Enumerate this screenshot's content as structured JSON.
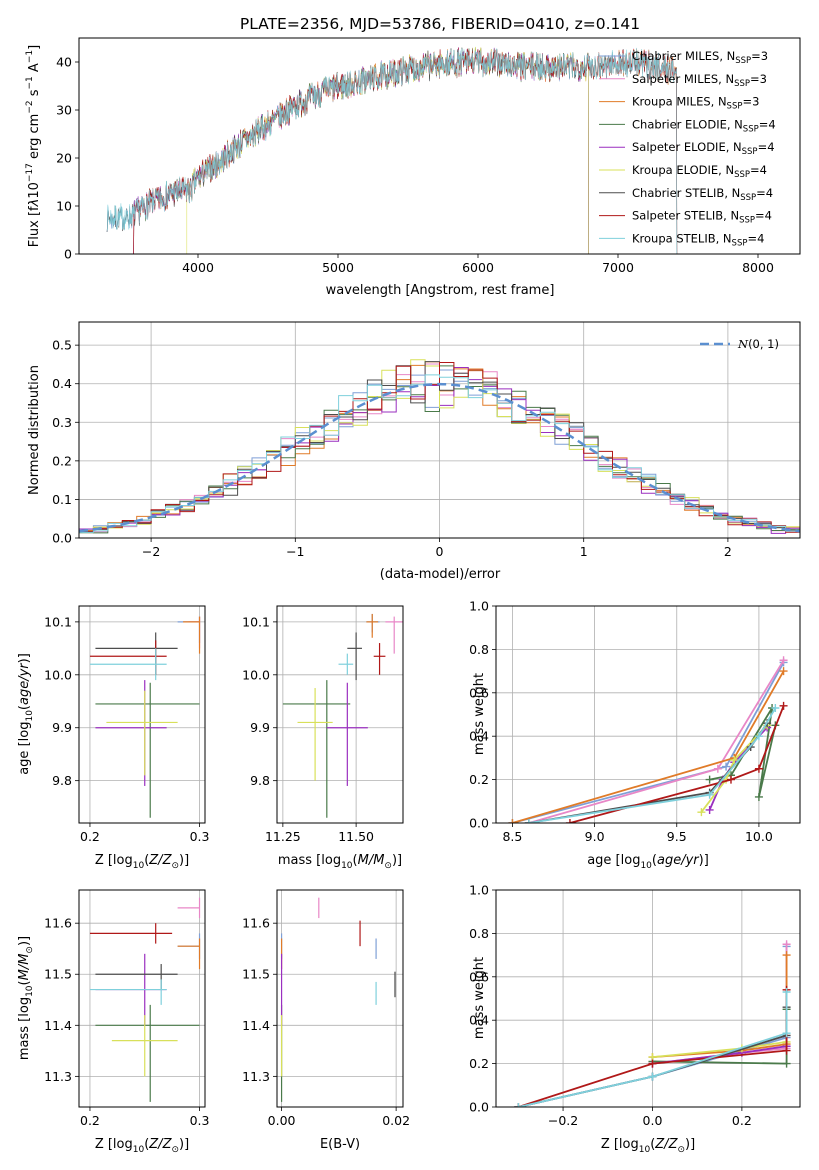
{
  "figure_title": "PLATE=2356, MJD=53786, FIBERID=0410, z=0.141",
  "colors": {
    "chabrier_miles": "#7f9fd6",
    "salpeter_miles": "#e887c7",
    "kroupa_miles": "#e07b28",
    "chabrier_elodie": "#4a7a4a",
    "salpeter_elodie": "#9a2fbf",
    "kroupa_elodie": "#d8e05a",
    "chabrier_stelib": "#4d4d4d",
    "salpeter_stelib": "#b01818",
    "kroupa_stelib": "#7fd0dc",
    "gauss": "#5b8fd0"
  },
  "chart_data": [
    {
      "id": "spectrum",
      "type": "line",
      "xlabel": "wavelength [Angstrom, rest frame]",
      "ylabel": "Flux [f_λ 10^-17 erg cm^-2 s^-1 A^-1]",
      "xlim": [
        3150,
        8300
      ],
      "ylim": [
        0,
        45
      ],
      "xticks": [
        "4000",
        "5000",
        "6000",
        "7000",
        "8000"
      ],
      "yticks": [
        "0",
        "10",
        "20",
        "30",
        "40"
      ],
      "grid": false,
      "legend_position": "right",
      "continuum": {
        "x": [
          3350,
          3500,
          3650,
          3800,
          3950,
          4000,
          4150,
          4300,
          4500,
          4700,
          4900,
          5100,
          5300,
          5500,
          5700,
          5900,
          6100,
          6300,
          6500,
          6700,
          6900,
          7100,
          7300,
          7420
        ],
        "y": [
          7.5,
          7.5,
          10.5,
          12.5,
          13.5,
          16,
          19,
          23,
          27,
          31,
          34,
          35.5,
          37,
          38.5,
          39.5,
          40,
          40,
          39,
          39,
          39,
          39.5,
          40,
          39,
          38
        ]
      },
      "series": [
        {
          "name": "Chabrier MILES, N_SSP=3",
          "color_key": "chabrier_miles",
          "xstart": 3350,
          "xend": 7420
        },
        {
          "name": "Salpeter MILES, N_SSP=3",
          "color_key": "salpeter_miles",
          "xstart": 3540,
          "xend": 7420
        },
        {
          "name": "Kroupa MILES, N_SSP=3",
          "color_key": "kroupa_miles",
          "xstart": 3540,
          "xend": 7420
        },
        {
          "name": "Chabrier ELODIE, N_SSP=4",
          "color_key": "chabrier_elodie",
          "xstart": 3540,
          "xend": 6790
        },
        {
          "name": "Salpeter ELODIE, N_SSP=4",
          "color_key": "salpeter_elodie",
          "xstart": 3540,
          "xend": 6790
        },
        {
          "name": "Kroupa ELODIE, N_SSP=4",
          "color_key": "kroupa_elodie",
          "xstart": 3920,
          "xend": 6790
        },
        {
          "name": "Chabrier STELIB, N_SSP=4",
          "color_key": "chabrier_stelib",
          "xstart": 3350,
          "xend": 7420
        },
        {
          "name": "Salpeter STELIB, N_SSP=4",
          "color_key": "salpeter_stelib",
          "xstart": 3540,
          "xend": 7420
        },
        {
          "name": "Kroupa STELIB, N_SSP=4",
          "color_key": "kroupa_stelib",
          "xstart": 3350,
          "xend": 7420
        }
      ]
    },
    {
      "id": "residuals",
      "type": "histogram",
      "xlabel": "(data-model)/error",
      "ylabel": "Normed distribution",
      "xlim": [
        -2.5,
        2.5
      ],
      "ylim": [
        0,
        0.56
      ],
      "xticks": [
        "−2",
        "−1",
        "0",
        "1",
        "2"
      ],
      "yticks": [
        "0.0",
        "0.1",
        "0.2",
        "0.3",
        "0.4",
        "0.5"
      ],
      "grid": true,
      "legend_position": "top-right",
      "legend_label": "N(0,1)",
      "bin_width": 0.1
    },
    {
      "id": "age_vs_Z",
      "type": "errorbar",
      "xlabel": "Z [log10(Z/Z⊙)]",
      "ylabel": "age  [log10(age/yr)]",
      "xlim": [
        0.19,
        0.305
      ],
      "ylim": [
        9.72,
        10.13
      ],
      "xticks": [
        "0.2",
        "0.3"
      ],
      "yticks": [
        "9.8",
        "9.9",
        "10.0",
        "10.1"
      ],
      "grid": true,
      "points": [
        {
          "color_key": "chabrier_miles",
          "x": 0.3,
          "y": 10.1,
          "xerr": [
            0.28,
            0.3
          ],
          "yerr": [
            10.06,
            10.11
          ]
        },
        {
          "color_key": "salpeter_miles",
          "x": 0.3,
          "y": 10.1,
          "xerr": [
            0.29,
            0.3
          ],
          "yerr": [
            10.05,
            10.11
          ]
        },
        {
          "color_key": "kroupa_miles",
          "x": 0.3,
          "y": 10.1,
          "xerr": [
            0.285,
            0.3
          ],
          "yerr": [
            10.04,
            10.11
          ]
        },
        {
          "color_key": "chabrier_elodie",
          "x": 0.255,
          "y": 9.945,
          "xerr": [
            0.205,
            0.3
          ],
          "yerr": [
            9.73,
            9.985
          ]
        },
        {
          "color_key": "salpeter_elodie",
          "x": 0.25,
          "y": 9.9,
          "xerr": [
            0.205,
            0.27
          ],
          "yerr": [
            9.79,
            9.99
          ]
        },
        {
          "color_key": "kroupa_elodie",
          "x": 0.25,
          "y": 9.91,
          "xerr": [
            0.215,
            0.28
          ],
          "yerr": [
            9.81,
            9.97
          ]
        },
        {
          "color_key": "chabrier_stelib",
          "x": 0.26,
          "y": 10.05,
          "xerr": [
            0.205,
            0.28
          ],
          "yerr": [
            10.0,
            10.08
          ]
        },
        {
          "color_key": "salpeter_stelib",
          "x": 0.26,
          "y": 10.035,
          "xerr": [
            0.2,
            0.27
          ],
          "yerr": [
            10.0,
            10.065
          ]
        },
        {
          "color_key": "kroupa_stelib",
          "x": 0.26,
          "y": 10.02,
          "xerr": [
            0.2,
            0.27
          ],
          "yerr": [
            9.99,
            10.05
          ]
        }
      ]
    },
    {
      "id": "age_vs_mass",
      "type": "errorbar",
      "xlabel": "mass [log10(M/M⊙)]",
      "ylabel": "",
      "xlim": [
        11.23,
        11.66
      ],
      "ylim": [
        9.72,
        10.13
      ],
      "xticks": [
        "11.25",
        "11.50"
      ],
      "yticks": [
        "9.8",
        "9.9",
        "10.0",
        "10.1"
      ],
      "grid": true,
      "points": [
        {
          "color_key": "chabrier_miles",
          "x": 11.555,
          "y": 10.1,
          "xerr": [
            11.535,
            11.58
          ],
          "yerr": [
            10.08,
            10.115
          ]
        },
        {
          "color_key": "salpeter_miles",
          "x": 11.63,
          "y": 10.1,
          "xerr": [
            11.6,
            11.66
          ],
          "yerr": [
            10.04,
            10.11
          ]
        },
        {
          "color_key": "kroupa_miles",
          "x": 11.555,
          "y": 10.1,
          "xerr": [
            11.535,
            11.575
          ],
          "yerr": [
            10.07,
            10.115
          ]
        },
        {
          "color_key": "chabrier_elodie",
          "x": 11.4,
          "y": 9.945,
          "xerr": [
            11.25,
            11.48
          ],
          "yerr": [
            9.73,
            9.99
          ]
        },
        {
          "color_key": "salpeter_elodie",
          "x": 11.47,
          "y": 9.9,
          "xerr": [
            11.4,
            11.54
          ],
          "yerr": [
            9.79,
            9.985
          ]
        },
        {
          "color_key": "kroupa_elodie",
          "x": 11.36,
          "y": 9.91,
          "xerr": [
            11.3,
            11.42
          ],
          "yerr": [
            9.8,
            9.975
          ]
        },
        {
          "color_key": "chabrier_stelib",
          "x": 11.5,
          "y": 10.05,
          "xerr": [
            11.47,
            11.52
          ],
          "yerr": [
            9.99,
            10.08
          ]
        },
        {
          "color_key": "salpeter_stelib",
          "x": 11.58,
          "y": 10.035,
          "xerr": [
            11.56,
            11.6
          ],
          "yerr": [
            10.0,
            10.06
          ]
        },
        {
          "color_key": "kroupa_stelib",
          "x": 11.47,
          "y": 10.02,
          "xerr": [
            11.44,
            11.49
          ],
          "yerr": [
            10.0,
            10.04
          ]
        }
      ]
    },
    {
      "id": "weight_vs_age",
      "type": "line",
      "xlabel": "age  [log10(age/yr)]",
      "ylabel": "mass weight",
      "xlim": [
        8.4,
        10.25
      ],
      "ylim": [
        0,
        1.0
      ],
      "xticks": [
        "8.5",
        "9.0",
        "9.5",
        "10.0"
      ],
      "yticks": [
        "0.0",
        "0.2",
        "0.4",
        "0.6",
        "0.8",
        "1.0"
      ],
      "grid": true,
      "series": [
        {
          "color_key": "chabrier_miles",
          "x": [
            8.5,
            9.8,
            10.15
          ],
          "y": [
            0.0,
            0.26,
            0.74
          ]
        },
        {
          "color_key": "salpeter_miles",
          "x": [
            8.6,
            9.75,
            10.15
          ],
          "y": [
            0.0,
            0.25,
            0.75
          ]
        },
        {
          "color_key": "kroupa_miles",
          "x": [
            8.5,
            9.85,
            10.15
          ],
          "y": [
            0.0,
            0.3,
            0.7
          ]
        },
        {
          "color_key": "chabrier_elodie",
          "x": [
            9.7,
            9.83,
            10.08,
            10.0,
            10.1
          ],
          "y": [
            0.2,
            0.22,
            0.53,
            0.12,
            0.45
          ]
        },
        {
          "color_key": "salpeter_elodie",
          "x": [
            9.7,
            9.78,
            9.85,
            10.05
          ],
          "y": [
            0.06,
            0.2,
            0.28,
            0.44
          ]
        },
        {
          "color_key": "kroupa_elodie",
          "x": [
            9.65,
            9.8,
            9.85,
            10.05
          ],
          "y": [
            0.05,
            0.2,
            0.29,
            0.45
          ]
        },
        {
          "color_key": "chabrier_stelib",
          "x": [
            8.6,
            9.7,
            9.95,
            10.05
          ],
          "y": [
            0.0,
            0.14,
            0.35,
            0.46
          ]
        },
        {
          "color_key": "salpeter_stelib",
          "x": [
            8.85,
            9.83,
            10.0,
            10.15
          ],
          "y": [
            0.0,
            0.2,
            0.25,
            0.54
          ]
        },
        {
          "color_key": "kroupa_stelib",
          "x": [
            8.6,
            9.7,
            10.0,
            10.1
          ],
          "y": [
            0.0,
            0.13,
            0.4,
            0.53
          ]
        }
      ]
    },
    {
      "id": "mass_vs_Z",
      "type": "errorbar",
      "xlabel": "Z [log10(Z/Z⊙)]",
      "ylabel": "mass [log10(M/M⊙)]",
      "xlim": [
        0.19,
        0.305
      ],
      "ylim": [
        11.24,
        11.665
      ],
      "xticks": [
        "0.2",
        "0.3"
      ],
      "yticks": [
        "11.3",
        "11.4",
        "11.5",
        "11.6"
      ],
      "grid": true,
      "points": [
        {
          "color_key": "chabrier_miles",
          "x": 0.3,
          "y": 11.555,
          "xerr": [
            0.28,
            0.3
          ],
          "yerr": [
            11.53,
            11.58
          ]
        },
        {
          "color_key": "salpeter_miles",
          "x": 0.3,
          "y": 11.63,
          "xerr": [
            0.28,
            0.3
          ],
          "yerr": [
            11.61,
            11.65
          ]
        },
        {
          "color_key": "kroupa_miles",
          "x": 0.3,
          "y": 11.555,
          "xerr": [
            0.28,
            0.3
          ],
          "yerr": [
            11.51,
            11.57
          ]
        },
        {
          "color_key": "chabrier_elodie",
          "x": 0.255,
          "y": 11.4,
          "xerr": [
            0.205,
            0.3
          ],
          "yerr": [
            11.25,
            11.44
          ]
        },
        {
          "color_key": "salpeter_elodie",
          "x": 0.25,
          "y": 11.47,
          "xerr": [
            0.205,
            0.27
          ],
          "yerr": [
            11.4,
            11.54
          ]
        },
        {
          "color_key": "kroupa_elodie",
          "x": 0.25,
          "y": 11.37,
          "xerr": [
            0.22,
            0.28
          ],
          "yerr": [
            11.3,
            11.42
          ]
        },
        {
          "color_key": "chabrier_stelib",
          "x": 0.265,
          "y": 11.5,
          "xerr": [
            0.205,
            0.28
          ],
          "yerr": [
            11.47,
            11.52
          ]
        },
        {
          "color_key": "salpeter_stelib",
          "x": 0.26,
          "y": 11.58,
          "xerr": [
            0.2,
            0.275
          ],
          "yerr": [
            11.56,
            11.6
          ]
        },
        {
          "color_key": "kroupa_stelib",
          "x": 0.265,
          "y": 11.47,
          "xerr": [
            0.2,
            0.27
          ],
          "yerr": [
            11.44,
            11.49
          ]
        }
      ]
    },
    {
      "id": "mass_vs_ebv",
      "type": "errorbar",
      "xlabel": "E(B-V)",
      "ylabel": "",
      "xlim": [
        -0.0008,
        0.0212
      ],
      "ylim": [
        11.24,
        11.665
      ],
      "xticks": [
        "0.00",
        "0.02"
      ],
      "yticks": [
        "11.3",
        "11.4",
        "11.5",
        "11.6"
      ],
      "grid": true,
      "points": [
        {
          "color_key": "chabrier_miles",
          "x": 0.0,
          "y": 11.555,
          "yerr": [
            11.53,
            11.58
          ]
        },
        {
          "color_key": "salpeter_miles",
          "x": 0.0065,
          "y": 11.63,
          "yerr": [
            11.61,
            11.65
          ]
        },
        {
          "color_key": "kroupa_miles",
          "x": 0.0,
          "y": 11.555,
          "yerr": [
            11.51,
            11.57
          ]
        },
        {
          "color_key": "chabrier_elodie",
          "x": 0.0,
          "y": 11.4,
          "yerr": [
            11.25,
            11.44
          ]
        },
        {
          "color_key": "salpeter_elodie",
          "x": 0.0,
          "y": 11.47,
          "yerr": [
            11.4,
            11.54
          ]
        },
        {
          "color_key": "kroupa_elodie",
          "x": 0.0,
          "y": 11.37,
          "yerr": [
            11.3,
            11.42
          ]
        },
        {
          "color_key": "chabrier_stelib",
          "x": 0.0198,
          "y": 11.48,
          "yerr": [
            11.455,
            11.505
          ]
        },
        {
          "color_key": "salpeter_stelib",
          "x": 0.0137,
          "y": 11.58,
          "yerr": [
            11.555,
            11.605
          ]
        },
        {
          "color_key": "kroupa_stelib",
          "x": 0.0165,
          "y": 11.46,
          "yerr": [
            11.44,
            11.485
          ]
        },
        {
          "color_key": "chabrier_miles",
          "x": 0.0165,
          "y": 11.55,
          "yerr": [
            11.53,
            11.57
          ]
        }
      ]
    },
    {
      "id": "weight_vs_Z",
      "type": "line",
      "xlabel": "Z [log10(Z/Z⊙)]",
      "ylabel": "mass weight",
      "xlim": [
        -0.35,
        0.33
      ],
      "ylim": [
        0,
        1.0
      ],
      "xticks": [
        "−0.2",
        "0.0",
        "0.2"
      ],
      "yticks": [
        "0.0",
        "0.2",
        "0.4",
        "0.6",
        "0.8",
        "1.0"
      ],
      "grid": true,
      "series": [
        {
          "color_key": "chabrier_miles",
          "x": [
            -0.3,
            0.0,
            0.3,
            0.3
          ],
          "y": [
            0.0,
            0.14,
            0.32,
            0.74
          ]
        },
        {
          "color_key": "salpeter_miles",
          "x": [
            0.0,
            0.2,
            0.3,
            0.3
          ],
          "y": [
            0.2,
            0.25,
            0.27,
            0.75
          ]
        },
        {
          "color_key": "kroupa_miles",
          "x": [
            0.0,
            0.2,
            0.3,
            0.3
          ],
          "y": [
            0.23,
            0.26,
            0.29,
            0.7
          ]
        },
        {
          "color_key": "chabrier_elodie",
          "x": [
            0.0,
            0.3,
            0.3
          ],
          "y": [
            0.21,
            0.2,
            0.45
          ]
        },
        {
          "color_key": "salpeter_elodie",
          "x": [
            0.0,
            0.2,
            0.3
          ],
          "y": [
            0.2,
            0.25,
            0.28
          ]
        },
        {
          "color_key": "kroupa_elodie",
          "x": [
            0.0,
            0.2,
            0.3
          ],
          "y": [
            0.23,
            0.27,
            0.3
          ]
        },
        {
          "color_key": "chabrier_stelib",
          "x": [
            -0.3,
            0.0,
            0.3,
            0.3
          ],
          "y": [
            0.0,
            0.14,
            0.33,
            0.46
          ]
        },
        {
          "color_key": "salpeter_stelib",
          "x": [
            -0.3,
            0.0,
            0.3,
            0.3
          ],
          "y": [
            0.0,
            0.2,
            0.26,
            0.54
          ]
        },
        {
          "color_key": "kroupa_stelib",
          "x": [
            -0.3,
            0.0,
            0.3,
            0.3
          ],
          "y": [
            0.0,
            0.14,
            0.34,
            0.53
          ]
        }
      ]
    }
  ]
}
